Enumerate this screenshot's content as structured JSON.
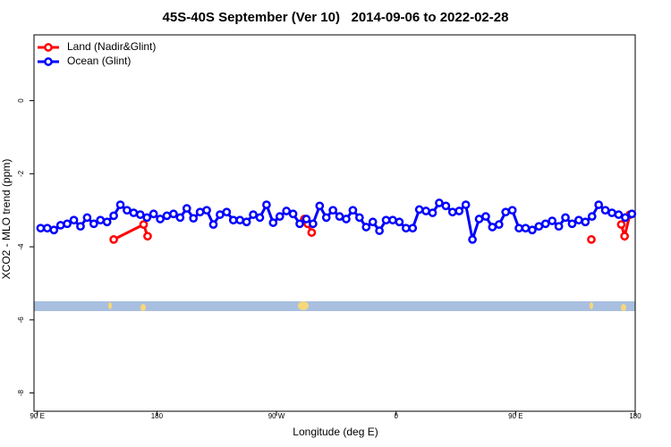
{
  "chart_data": {
    "type": "line",
    "title": "45S-40S September (Ver 10)   2014-09-06 to 2022-02-28",
    "xlabel": "Longitude (deg E)",
    "ylabel": "XCO2 - MLO trend (ppm)",
    "xlim": [
      87.5,
      540
    ],
    "ylim": [
      -8.5,
      1.8
    ],
    "xticks": [
      {
        "value": 90,
        "label": "90 E"
      },
      180,
      {
        "value": 270,
        "label": "90 W"
      },
      {
        "value": 360,
        "label": "0"
      },
      {
        "value": 450,
        "label": "90 E"
      },
      {
        "value": 540,
        "label": "180"
      }
    ],
    "yticks": [
      0,
      -2,
      -4,
      -6,
      -8
    ],
    "legend": "top-left",
    "series": [
      {
        "name": "Land (Nadir&Glint)",
        "color": "#ff0000",
        "x": [
          147.5,
          170,
          173,
          230,
          291,
          293.5,
          296.5,
          400,
          507,
          520,
          529.5,
          532,
          536
        ],
        "values": [
          -3.8,
          -3.39,
          -3.71,
          null,
          -3.24,
          -3.37,
          -3.61,
          null,
          -3.8,
          null,
          -3.39,
          -3.71,
          -3.12
        ]
      },
      {
        "name": "Ocean (Glint)",
        "color": "#0000ff",
        "x": [
          92.5,
          97.5,
          102.5,
          107.5,
          112.5,
          117.5,
          122.5,
          127.5,
          132.5,
          137.5,
          142.5,
          147.5,
          152.5,
          157.5,
          162.5,
          167.5,
          172.5,
          177.5,
          182.5,
          187.5,
          192.5,
          197.5,
          202.5,
          207.5,
          212.5,
          217.5,
          222.5,
          227.5,
          232.5,
          237.5,
          242.5,
          247.5,
          252.5,
          257.5,
          262.5,
          267.5,
          272.5,
          277.5,
          282.5,
          287.5,
          292.5,
          297.5,
          302.5,
          307.5,
          312.5,
          317.5,
          322.5,
          327.5,
          332.5,
          337.5,
          342.5,
          347.5,
          352.5,
          357.5,
          362.5,
          367.5,
          372.5,
          377.5,
          382.5,
          387.5,
          392.5,
          397.5,
          402.5,
          407.5,
          412.5,
          417.5,
          422.5,
          427.5,
          432.5,
          437.5,
          442.5,
          447.5,
          452.5,
          457.5,
          462.5,
          467.5,
          472.5,
          477.5,
          482.5,
          487.5,
          492.5,
          497.5,
          502.5,
          507.5,
          512.5,
          517.5,
          522.5,
          527.5,
          532.5,
          537.5
        ],
        "values": [
          -3.49,
          -3.49,
          -3.54,
          -3.41,
          -3.37,
          -3.27,
          -3.44,
          -3.2,
          -3.37,
          -3.27,
          -3.32,
          -3.15,
          -2.85,
          -3.0,
          -3.07,
          -3.12,
          -3.2,
          -3.1,
          -3.24,
          -3.15,
          -3.1,
          -3.2,
          -2.95,
          -3.22,
          -3.05,
          -3.0,
          -3.39,
          -3.12,
          -3.05,
          -3.27,
          -3.27,
          -3.32,
          -3.12,
          -3.2,
          -2.85,
          -3.34,
          -3.17,
          -3.02,
          -3.1,
          -3.37,
          -3.24,
          -3.37,
          -2.88,
          -3.2,
          -3.0,
          -3.17,
          -3.24,
          -3.0,
          -3.2,
          -3.46,
          -3.32,
          -3.56,
          -3.27,
          -3.27,
          -3.32,
          -3.49,
          -3.49,
          -2.98,
          -3.02,
          -3.07,
          -2.8,
          -2.88,
          -3.05,
          -3.02,
          -2.85,
          -3.8,
          -3.24,
          -3.17,
          -3.46,
          -3.39,
          -3.05,
          -3.0,
          -3.49,
          -3.49,
          -3.54,
          -3.44,
          -3.37,
          -3.29,
          -3.44,
          -3.2,
          -3.37,
          -3.27,
          -3.32,
          -3.17,
          -2.85,
          -3.0,
          -3.07,
          -3.12,
          -3.2,
          -3.1
        ]
      }
    ]
  }
}
